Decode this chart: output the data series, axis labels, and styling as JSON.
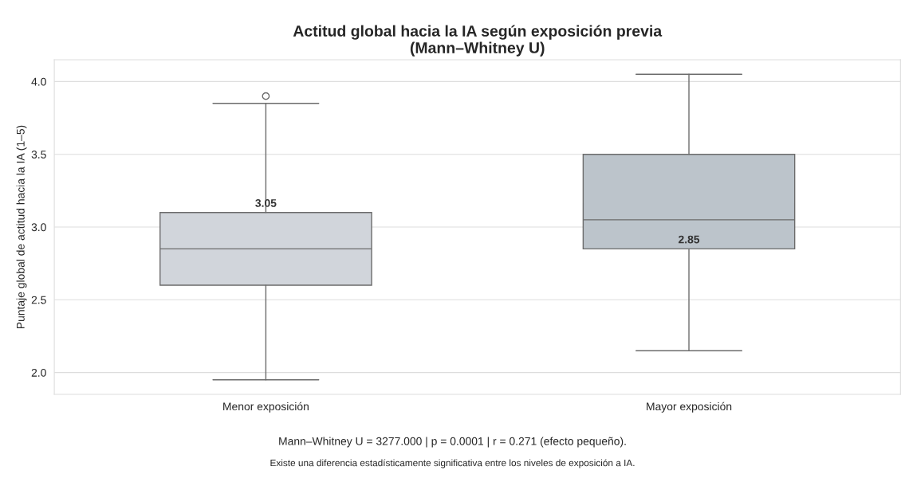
{
  "chart_data": {
    "type": "box",
    "title": "Actitud global hacia la IA según exposición previa\n(Mann–Whitney U)",
    "ylabel": "Puntaje global de actitud hacia la IA (1–5)",
    "categories": [
      "Menor exposición",
      "Mayor exposición"
    ],
    "boxes": [
      {
        "low": 1.95,
        "q1": 2.6,
        "median": 2.85,
        "q3": 3.1,
        "high": 3.85,
        "outliers": [
          3.9
        ]
      },
      {
        "low": 2.15,
        "q1": 2.85,
        "median": 3.05,
        "q3": 3.5,
        "high": 4.05
      }
    ],
    "colors": [
      "#d1d5db",
      "#bcc4cb"
    ],
    "ylim": [
      1.85,
      4.15
    ],
    "yticks": [
      {
        "value": 2.0,
        "label": "2.0"
      },
      {
        "value": 2.5,
        "label": "2.5"
      },
      {
        "value": 3.0,
        "label": "3.0"
      },
      {
        "value": 3.5,
        "label": "3.5"
      },
      {
        "value": 4.0,
        "label": "4.0"
      }
    ],
    "grid": "y",
    "annotations": [
      {
        "text": "3.05",
        "x": "Menor exposición",
        "y": 3.1
      },
      {
        "text": "2.85",
        "x": "Mayor exposición",
        "y": 2.85
      },
      "Mann–Whitney U = 3277.000 | p = 0.0001 | r = 0.271 (efecto pequeño).",
      "Existe una diferencia estadísticamente significativa entre los niveles de exposición a IA."
    ]
  }
}
